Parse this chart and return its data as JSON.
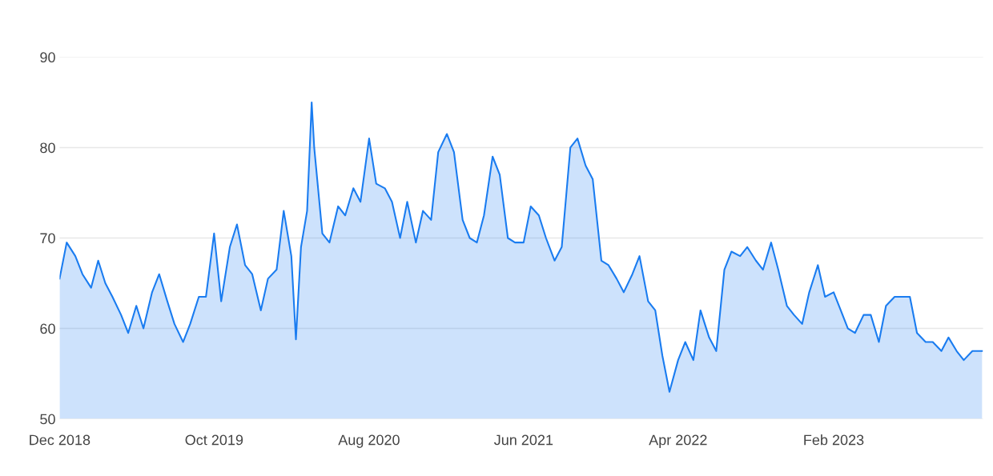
{
  "chart_data": {
    "type": "area",
    "x": [
      "2018-12-01",
      "2018-12-15",
      "2019-01-01",
      "2019-01-15",
      "2019-02-01",
      "2019-02-15",
      "2019-03-01",
      "2019-03-15",
      "2019-04-01",
      "2019-04-15",
      "2019-05-01",
      "2019-05-15",
      "2019-06-01",
      "2019-06-15",
      "2019-07-01",
      "2019-07-15",
      "2019-08-01",
      "2019-08-15",
      "2019-09-01",
      "2019-09-15",
      "2019-10-01",
      "2019-10-15",
      "2019-11-01",
      "2019-11-15",
      "2019-12-01",
      "2019-12-15",
      "2020-01-01",
      "2020-01-15",
      "2020-02-01",
      "2020-02-15",
      "2020-03-01",
      "2020-03-10",
      "2020-03-20",
      "2020-04-01",
      "2020-04-10",
      "2020-04-15",
      "2020-05-01",
      "2020-05-15",
      "2020-06-01",
      "2020-06-15",
      "2020-07-01",
      "2020-07-15",
      "2020-08-01",
      "2020-08-15",
      "2020-09-01",
      "2020-09-15",
      "2020-10-01",
      "2020-10-15",
      "2020-11-01",
      "2020-11-15",
      "2020-12-01",
      "2020-12-15",
      "2021-01-01",
      "2021-01-15",
      "2021-02-01",
      "2021-02-15",
      "2021-03-01",
      "2021-03-15",
      "2021-04-01",
      "2021-04-15",
      "2021-05-01",
      "2021-05-15",
      "2021-06-01",
      "2021-06-15",
      "2021-07-01",
      "2021-07-15",
      "2021-08-01",
      "2021-08-15",
      "2021-09-01",
      "2021-09-15",
      "2021-10-01",
      "2021-10-15",
      "2021-11-01",
      "2021-11-15",
      "2021-12-01",
      "2021-12-15",
      "2022-01-01",
      "2022-01-15",
      "2022-02-01",
      "2022-02-15",
      "2022-03-01",
      "2022-03-15",
      "2022-04-01",
      "2022-04-15",
      "2022-05-01",
      "2022-05-15",
      "2022-06-01",
      "2022-06-15",
      "2022-07-01",
      "2022-07-15",
      "2022-08-01",
      "2022-08-15",
      "2022-09-01",
      "2022-09-15",
      "2022-10-01",
      "2022-10-15",
      "2022-11-01",
      "2022-11-15",
      "2022-12-01",
      "2022-12-15",
      "2023-01-01",
      "2023-01-15",
      "2023-02-01",
      "2023-02-15",
      "2023-03-01",
      "2023-03-15",
      "2023-04-01",
      "2023-04-15",
      "2023-05-01",
      "2023-05-15",
      "2023-06-01",
      "2023-06-15",
      "2023-07-01",
      "2023-07-15",
      "2023-08-01",
      "2023-08-15",
      "2023-09-01",
      "2023-09-15",
      "2023-10-01",
      "2023-10-15",
      "2023-11-01",
      "2023-11-20"
    ],
    "series": [
      {
        "color": "#1a7cf0",
        "values": [
          65.5,
          69.5,
          68,
          66,
          64.5,
          67.5,
          65,
          63.5,
          61.5,
          59.5,
          62.5,
          60,
          64,
          66,
          63,
          60.5,
          58.5,
          60.5,
          63.5,
          63.5,
          70.5,
          63,
          69,
          71.5,
          67,
          66,
          62,
          65.5,
          66.5,
          73,
          68,
          58.8,
          69,
          73,
          85,
          80,
          70.5,
          69.5,
          73.5,
          72.5,
          75.5,
          74,
          81,
          76,
          75.5,
          74,
          70,
          74,
          69.5,
          73,
          72,
          79.5,
          81.5,
          79.5,
          72,
          70,
          69.5,
          72.5,
          79,
          77,
          70,
          69.5,
          69.5,
          73.5,
          72.5,
          70,
          67.5,
          69,
          80,
          81,
          78,
          76.5,
          67.5,
          67,
          65.5,
          64,
          66,
          68,
          63,
          62,
          57,
          53,
          56.5,
          58.5,
          56.5,
          62,
          59,
          57.5,
          66.5,
          68.5,
          68,
          69,
          67.5,
          66.5,
          69.5,
          66.5,
          62.5,
          61.5,
          60.5,
          64,
          67,
          63.5,
          64,
          62,
          60,
          59.5,
          61.5,
          61.5,
          58.5,
          62.5,
          63.5,
          63.5,
          63.5,
          59.5,
          58.5,
          58.5,
          57.5,
          59,
          57.5,
          56.5,
          57.5,
          57.5
        ]
      }
    ],
    "xlim": [
      "2018-12-01",
      "2023-11-22"
    ],
    "xticks": [
      {
        "value": "2018-12-01",
        "label": "Dec 2018"
      },
      {
        "value": "2019-10-01",
        "label": "Oct 2019"
      },
      {
        "value": "2020-08-01",
        "label": "Aug 2020"
      },
      {
        "value": "2021-06-01",
        "label": "Jun 2021"
      },
      {
        "value": "2022-04-01",
        "label": "Apr 2022"
      },
      {
        "value": "2023-02-01",
        "label": "Feb 2023"
      }
    ],
    "ylim": [
      50,
      90
    ],
    "yticks": [
      50,
      60,
      70,
      80,
      90
    ],
    "grid": "y"
  }
}
